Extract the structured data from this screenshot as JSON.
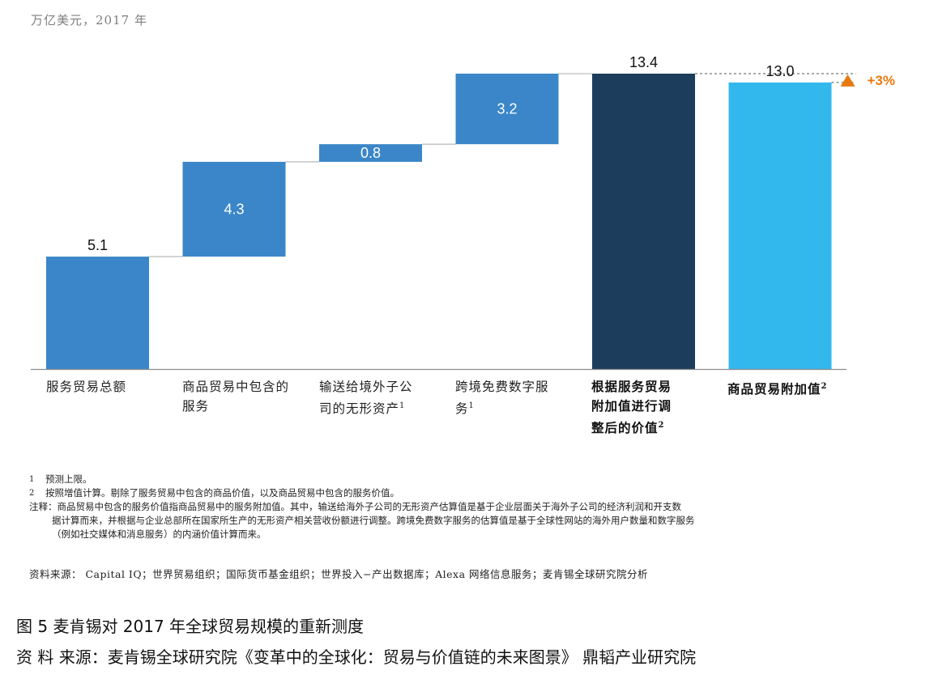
{
  "unit_label": "万亿美元，2017 年",
  "chart_data": {
    "type": "bar",
    "subtype": "waterfall",
    "ylim": [
      0,
      13.4
    ],
    "grid": false,
    "categories": [
      "服务贸易总额",
      "商品贸易中包含的服务",
      "输送给境外子公司的无形资产",
      "跨境免费数字服务",
      "根据服务贸易附加值进行调整后的价值",
      "商品贸易附加值"
    ],
    "values": [
      5.1,
      4.3,
      0.8,
      3.2,
      13.4,
      13.0
    ],
    "value_labels": [
      "5.1",
      "4.3",
      "0.8",
      "3.2",
      "13.4",
      "13.0"
    ],
    "bar_kind": [
      "increment",
      "increment",
      "increment",
      "increment",
      "total",
      "total"
    ],
    "colors": {
      "increment": "#3a86c8",
      "adjusted_total": "#1d3d5c",
      "goods_total": "#33b8ee",
      "connector": "#bfbfbf",
      "annotation": "#e8790f"
    },
    "annotation": {
      "text": "+3%",
      "marker": "triangle-up"
    }
  },
  "category_labels": [
    {
      "lines": [
        "服务贸易总额"
      ],
      "sup": ""
    },
    {
      "lines": [
        "商品贸易中包含的",
        "服务"
      ],
      "sup": ""
    },
    {
      "lines": [
        "输送给境外子公",
        "司的无形资产"
      ],
      "sup": "1"
    },
    {
      "lines": [
        "跨境免费数字服",
        "务"
      ],
      "sup": "1"
    },
    {
      "lines": [
        "根据服务贸易",
        "附加值进行调",
        "整后的价值"
      ],
      "sup": "2"
    },
    {
      "lines": [
        "商品贸易附加值"
      ],
      "sup": "2"
    }
  ],
  "footnotes": {
    "n1_num": "1",
    "n1": "预测上限。",
    "n2_num": "2",
    "n2": "按照增值计算。剔除了服务贸易中包含的商品价值，以及商品贸易中包含的服务价值。",
    "note_line1": "注释：商品贸易中包含的服务价值指商品贸易中的服务附加值。其中，输送给海外子公司的无形资产估算值是基于企业层面关于海外子公司的经济利润和开支数",
    "note_line2": "据计算而来，并根据与企业总部所在国家所生产的无形资产相关营收份额进行调整。跨境免费数字服务的估算值是基于全球性网站的海外用户数量和数字服务",
    "note_line3": "（例如社交媒体和消息服务）的内涵价值计算而来。"
  },
  "source_line": "资料来源：  Capital IQ；世界贸易组织；国际货币基金组织；世界投入−产出数据库；Alexa 网络信息服务；麦肯锡全球研究院分析",
  "caption_title": "图 5   麦肯锡对 2017 年全球贸易规模的重新测度",
  "caption_source": "资 料 来源：麦肯锡全球研究院《变革中的全球化：贸易与价值链的未来图景》   鼎韬产业研究院"
}
